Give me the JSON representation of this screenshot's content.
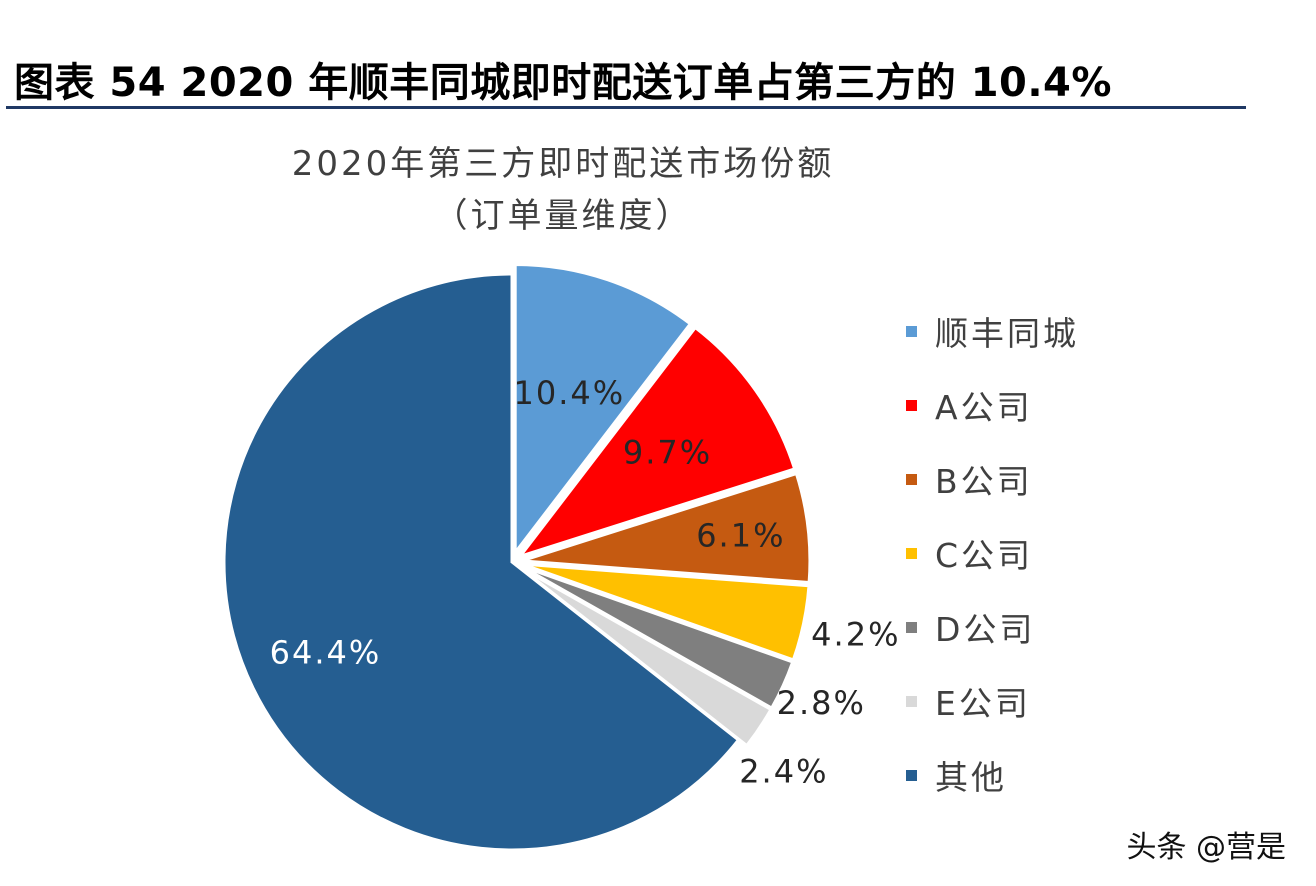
{
  "header": {
    "title": "图表 54 2020 年顺丰同城即时配送订单占第三方的 10.4%"
  },
  "watermark": "头条 @营是",
  "chart_data": {
    "type": "pie",
    "title": "2020年第三方即时配送市场份额",
    "subtitle": "（订单量维度）",
    "legend_position": "right",
    "categories": [
      "顺丰同城",
      "A公司",
      "B公司",
      "C公司",
      "D公司",
      "E公司",
      "其他"
    ],
    "values": [
      10.4,
      9.7,
      6.1,
      4.2,
      2.8,
      2.4,
      64.4
    ],
    "data_labels": [
      "10.4%",
      "9.7%",
      "6.1%",
      "4.2%",
      "2.8%",
      "2.4%",
      "64.4%"
    ],
    "colors": [
      "#5b9bd5",
      "#ff0000",
      "#c55a11",
      "#ffc000",
      "#7f7f7f",
      "#d9d9d9",
      "#255e91"
    ],
    "start_angle": "12 o'clock, clockwise"
  }
}
